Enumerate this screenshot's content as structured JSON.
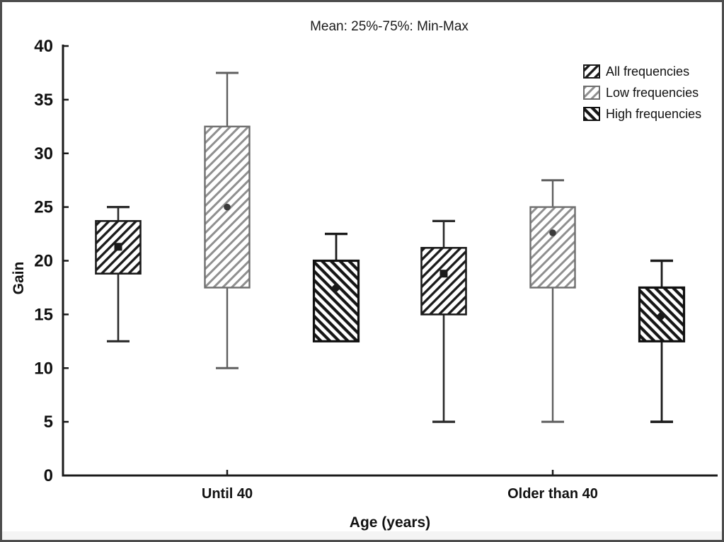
{
  "title": "Mean: 25%-75%: Min-Max",
  "legend": {
    "items": [
      {
        "label": "All frequencies"
      },
      {
        "label": "Low frequencies"
      },
      {
        "label": "High frequencies"
      }
    ]
  },
  "colors": {
    "axis": "#1b1b1b",
    "dark_series": "#1b1b1b",
    "gray_series_line": "#8f8f8f",
    "gray_series_border": "#6e6e6e",
    "gray_whisker": "#5f5f5f",
    "marker_gray": "#3a3a3a",
    "background": "#ffffff",
    "frame_border": "#4d4d4d"
  },
  "chart_data": {
    "type": "boxplot",
    "title": "Mean: 25%-75%: Min-Max",
    "xlabel": "Age (years)",
    "ylabel": "Gain",
    "ylim": [
      0,
      40
    ],
    "yticks": [
      0,
      5,
      10,
      15,
      20,
      25,
      30,
      35,
      40
    ],
    "categories": [
      "Until 40",
      "Older than 40"
    ],
    "legend_position": "top-right",
    "grid": false,
    "box_semantics": {
      "center": "mean",
      "box": "25%-75%",
      "whiskers": "min-max"
    },
    "series": [
      {
        "name": "All frequencies",
        "style": "dark-forward-hatch",
        "marker": "square",
        "boxes": [
          {
            "category": "Until 40",
            "min": 12.5,
            "q1": 18.8,
            "mean": 21.3,
            "q3": 23.7,
            "max": 25
          },
          {
            "category": "Older than 40",
            "min": 5,
            "q1": 15,
            "mean": 18.8,
            "q3": 21.2,
            "max": 23.7
          }
        ]
      },
      {
        "name": "Low frequencies",
        "style": "gray-forward-hatch",
        "marker": "circle",
        "boxes": [
          {
            "category": "Until 40",
            "min": 10,
            "q1": 17.5,
            "mean": 25,
            "q3": 32.5,
            "max": 37.5
          },
          {
            "category": "Older than 40",
            "min": 5,
            "q1": 17.5,
            "mean": 22.6,
            "q3": 25,
            "max": 27.5
          }
        ]
      },
      {
        "name": "High frequencies",
        "style": "dark-backward-hatch",
        "marker": "diamond",
        "boxes": [
          {
            "category": "Until 40",
            "min": 12.5,
            "q1": 12.5,
            "mean": 17.5,
            "q3": 20,
            "max": 22.5
          },
          {
            "category": "Older than 40",
            "min": 5,
            "q1": 12.5,
            "mean": 14.9,
            "q3": 17.5,
            "max": 20
          }
        ]
      }
    ]
  }
}
